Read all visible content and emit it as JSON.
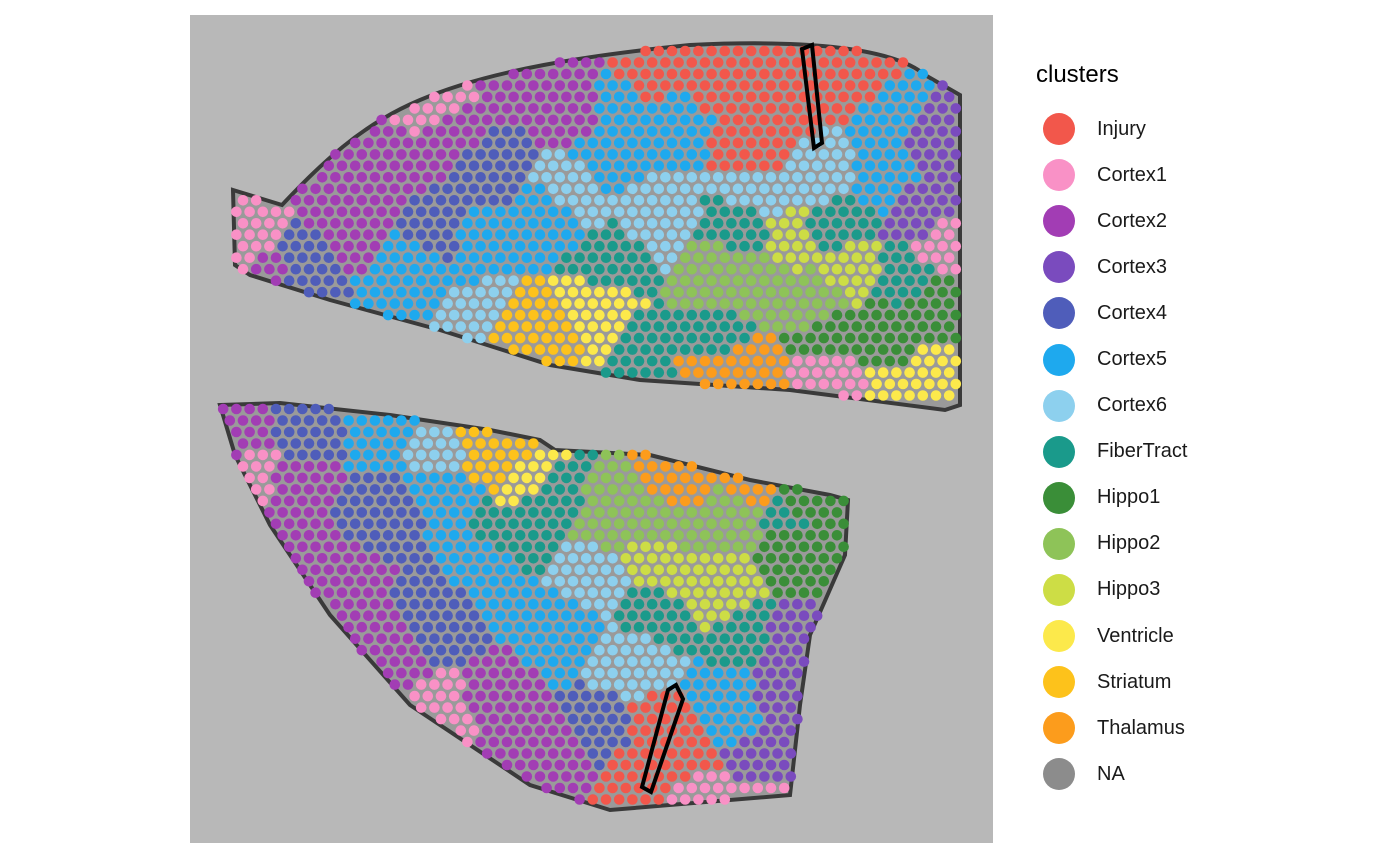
{
  "legend": {
    "title": "clusters",
    "items": [
      {
        "label": "Injury",
        "color": "#F2574B"
      },
      {
        "label": "Cortex1",
        "color": "#F991C6"
      },
      {
        "label": "Cortex2",
        "color": "#A23DB4"
      },
      {
        "label": "Cortex3",
        "color": "#7A4BBE"
      },
      {
        "label": "Cortex4",
        "color": "#4F5DBA"
      },
      {
        "label": "Cortex5",
        "color": "#1EA9EE"
      },
      {
        "label": "Cortex6",
        "color": "#8DD0EE"
      },
      {
        "label": "FiberTract",
        "color": "#1A9A8B"
      },
      {
        "label": "Hippo1",
        "color": "#3A8E38"
      },
      {
        "label": "Hippo2",
        "color": "#8EC358"
      },
      {
        "label": "Hippo3",
        "color": "#CDDD45"
      },
      {
        "label": "Ventricle",
        "color": "#FCE94B"
      },
      {
        "label": "Striatum",
        "color": "#FDC21B"
      },
      {
        "label": "Thalamus",
        "color": "#FC9C1C"
      },
      {
        "label": "NA",
        "color": "#8C8C8C"
      }
    ]
  }
}
